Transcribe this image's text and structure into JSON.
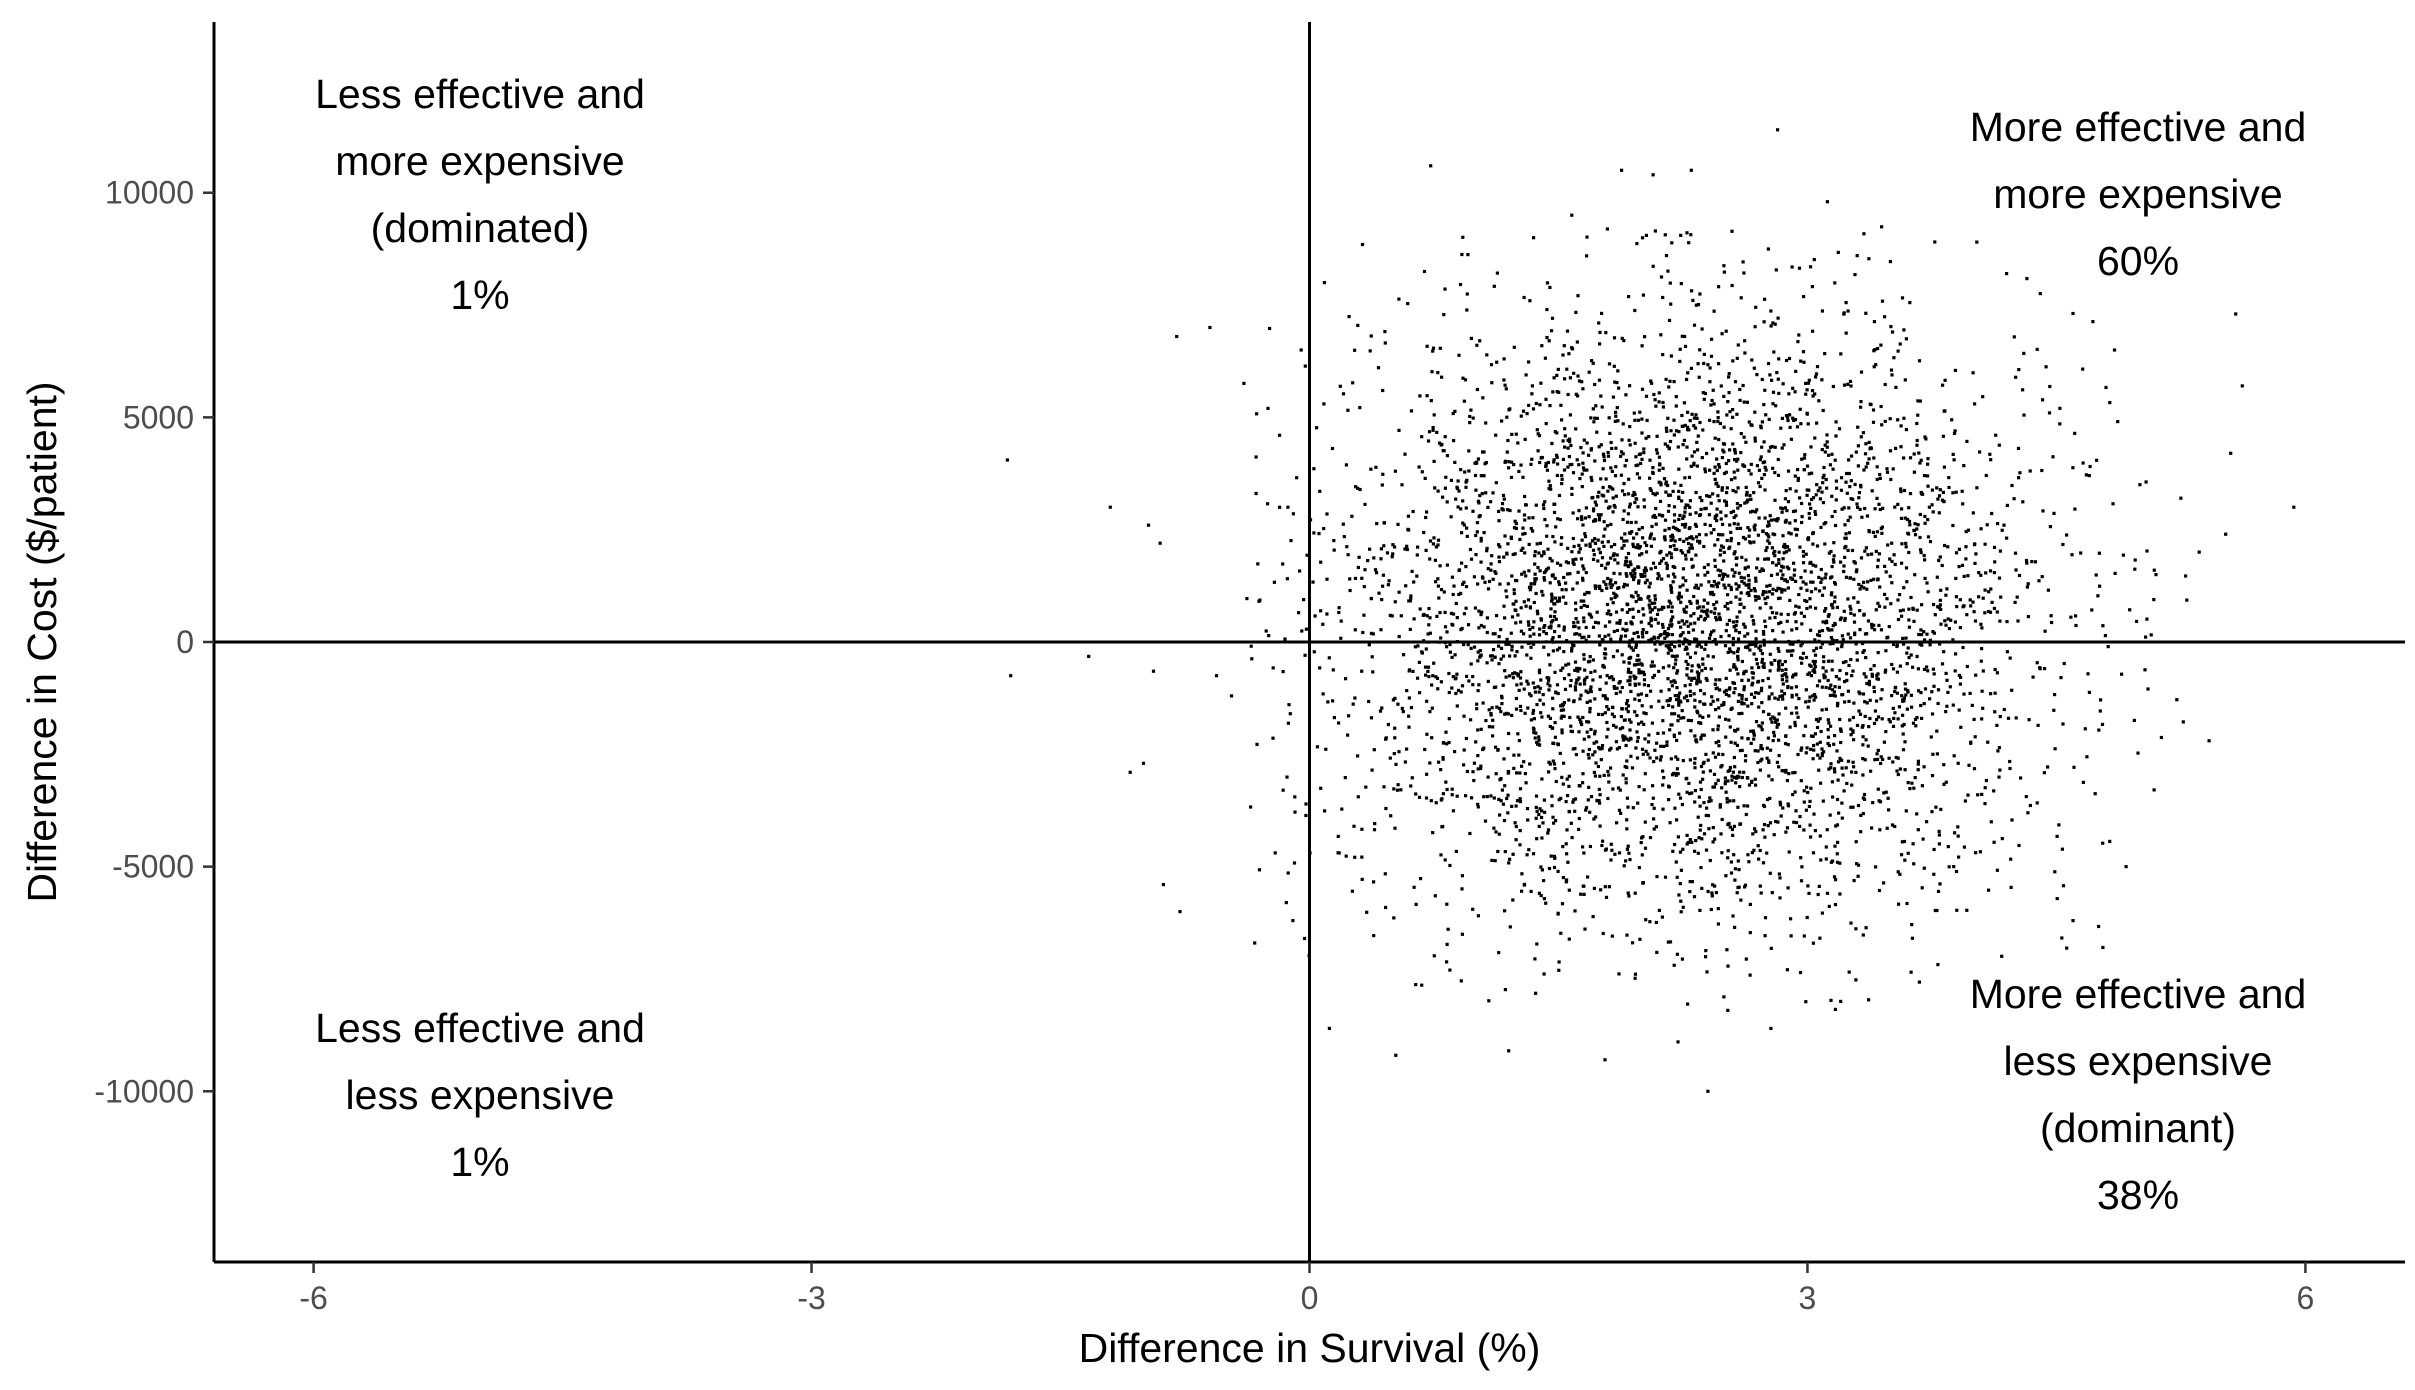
{
  "chart_data": {
    "type": "scatter",
    "title": "",
    "xlabel": "Difference in Survival (%)",
    "ylabel": "Difference in Cost ($/patient)",
    "xlim": [
      -6.6,
      6.6
    ],
    "ylim": [
      -13800,
      13800
    ],
    "x_ticks": [
      -6,
      -3,
      0,
      3,
      6
    ],
    "y_ticks": [
      -10000,
      -5000,
      0,
      5000,
      10000
    ],
    "x_tick_labels": [
      "-6",
      "-3",
      "0",
      "3",
      "6"
    ],
    "y_tick_labels": [
      "-10000",
      "-5000",
      "0",
      "5000",
      "10000"
    ],
    "reference_lines": {
      "x": 0,
      "y": 0
    },
    "grid": false,
    "legend": "none",
    "point_color": "#000000",
    "quadrant_labels": [
      {
        "id": "nw",
        "lines": [
          "Less effective and",
          "more expensive",
          "(dominated)",
          "1%"
        ]
      },
      {
        "id": "ne",
        "lines": [
          "More effective and",
          "more expensive",
          "60%"
        ]
      },
      {
        "id": "sw",
        "lines": [
          "Less effective and",
          "less expensive",
          "1%"
        ]
      },
      {
        "id": "se",
        "lines": [
          "More effective and",
          "less expensive",
          "(dominant)",
          "38%"
        ]
      }
    ],
    "series": [
      {
        "distribution": "bivariate normal",
        "n": 5000,
        "mean_x": 2.3,
        "mean_y": 550,
        "sd_x": 1.05,
        "sd_y": 3300,
        "points": [
          [
            -1.82,
            4050
          ],
          [
            -1.8,
            -750
          ],
          [
            -1.33,
            -320
          ],
          [
            -1.2,
            3000
          ],
          [
            -1.08,
            -2900
          ],
          [
            -1.0,
            -2700
          ],
          [
            -0.97,
            2600
          ],
          [
            -0.94,
            -650
          ],
          [
            -0.9,
            2200
          ],
          [
            -0.88,
            -5400
          ],
          [
            -0.8,
            6800
          ],
          [
            -0.78,
            -6000
          ],
          [
            -0.6,
            7000
          ],
          [
            -0.56,
            -750
          ],
          [
            -0.47,
            -1200
          ],
          [
            -0.33,
            -6700
          ],
          [
            -0.25,
            5200
          ],
          [
            -0.18,
            4600
          ],
          [
            -0.14,
            -5800
          ],
          [
            -0.13,
            3000
          ],
          [
            -0.1,
            -6200
          ],
          [
            -0.05,
            6500
          ],
          [
            -0.03,
            -6600
          ],
          [
            0.09,
            8000
          ],
          [
            0.12,
            -8600
          ],
          [
            0.52,
            -9200
          ],
          [
            0.73,
            10600
          ],
          [
            1.2,
            -9100
          ],
          [
            1.35,
            9000
          ],
          [
            1.58,
            9500
          ],
          [
            1.78,
            -9300
          ],
          [
            1.88,
            10500
          ],
          [
            2.07,
            10400
          ],
          [
            2.22,
            -8900
          ],
          [
            2.3,
            10500
          ],
          [
            2.4,
            -10000
          ],
          [
            2.52,
            -8200
          ],
          [
            2.78,
            -8600
          ],
          [
            2.82,
            11400
          ],
          [
            3.12,
            9800
          ],
          [
            3.2,
            -8000
          ],
          [
            3.3,
            8600
          ],
          [
            4.02,
            8900
          ],
          [
            4.2,
            8200
          ],
          [
            4.6,
            -6200
          ],
          [
            4.78,
            -6800
          ],
          [
            4.85,
            6500
          ],
          [
            4.92,
            -5000
          ],
          [
            5.1,
            1500
          ],
          [
            5.25,
            3200
          ],
          [
            5.36,
            2000
          ],
          [
            5.42,
            -2200
          ],
          [
            5.52,
            2400
          ],
          [
            5.55,
            4200
          ],
          [
            5.58,
            7300
          ],
          [
            5.62,
            5700
          ],
          [
            5.93,
            3000
          ]
        ]
      }
    ]
  }
}
